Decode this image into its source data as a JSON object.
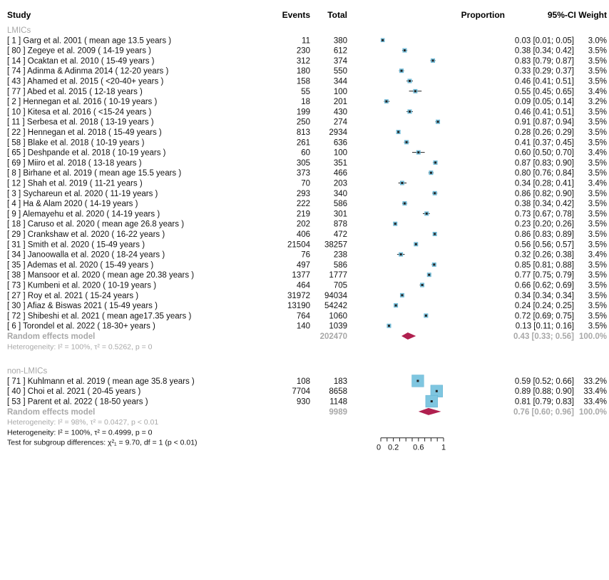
{
  "headers": {
    "study": "Study",
    "events": "Events",
    "total": "Total",
    "proportion": "Proportion",
    "ci_weight": "95%-CI Weight"
  },
  "colors": {
    "text": "#111111",
    "gray_text": "#a8a8a8",
    "square": "#7fc6e0",
    "square_edge": "#5aaed0",
    "diamond": "#b0204f",
    "ci_line": "#222222"
  },
  "chart_data": {
    "type": "forest",
    "xlim": [
      0,
      1
    ],
    "ticks": [
      "0",
      "0.2",
      "0.6",
      "1"
    ],
    "tick_values": [
      0,
      0.2,
      0.6,
      1
    ],
    "minor_ticks": [
      0,
      0.1,
      0.2,
      0.3,
      0.4,
      0.5,
      0.6,
      0.7,
      0.8,
      0.9,
      1
    ],
    "groups": [
      {
        "label": "LMICs",
        "studies": [
          {
            "study": "[ 1 ] Garg et al. 2001 ( mean age 13.5 years )",
            "events": "11",
            "total": "380",
            "est": 0.03,
            "lo": 0.01,
            "hi": 0.05,
            "ci_text": "0.03 [0.01; 0.05]",
            "weight": "3.0%",
            "w": 3.0
          },
          {
            "study": "[ 80 ] Zegeye et al. 2009 ( 14-19 years )",
            "events": "230",
            "total": "612",
            "est": 0.38,
            "lo": 0.34,
            "hi": 0.42,
            "ci_text": "0.38 [0.34; 0.42]",
            "weight": "3.5%",
            "w": 3.5
          },
          {
            "study": "[ 14 ] Ocaktan et al. 2010 ( 15-49 years )",
            "events": "312",
            "total": "374",
            "est": 0.83,
            "lo": 0.79,
            "hi": 0.87,
            "ci_text": "0.83 [0.79; 0.87]",
            "weight": "3.5%",
            "w": 3.5
          },
          {
            "study": "[ 74 ] Adinma & Adinma 2014 ( 12-20 years )",
            "events": "180",
            "total": "550",
            "est": 0.33,
            "lo": 0.29,
            "hi": 0.37,
            "ci_text": "0.33 [0.29; 0.37]",
            "weight": "3.5%",
            "w": 3.5
          },
          {
            "study": "[ 43 ] Ahamed et al. 2015 ( <20-40+ years )",
            "events": "158",
            "total": "344",
            "est": 0.46,
            "lo": 0.41,
            "hi": 0.51,
            "ci_text": "0.46 [0.41; 0.51]",
            "weight": "3.5%",
            "w": 3.5
          },
          {
            "study": "[ 77 ] Abed et al. 2015 ( 12-18 years )",
            "events": "55",
            "total": "100",
            "est": 0.55,
            "lo": 0.45,
            "hi": 0.65,
            "ci_text": "0.55 [0.45; 0.65]",
            "weight": "3.4%",
            "w": 3.4
          },
          {
            "study": "[ 2 ] Hennegan et al. 2016 ( 10-19 years )",
            "events": "18",
            "total": "201",
            "est": 0.09,
            "lo": 0.05,
            "hi": 0.14,
            "ci_text": "0.09 [0.05; 0.14]",
            "weight": "3.2%",
            "w": 3.2
          },
          {
            "study": "[ 10 ] Kitesa et al. 2016 ( <15-24 years )",
            "events": "199",
            "total": "430",
            "est": 0.46,
            "lo": 0.41,
            "hi": 0.51,
            "ci_text": "0.46 [0.41; 0.51]",
            "weight": "3.5%",
            "w": 3.5
          },
          {
            "study": "[ 11 ] Serbesa et al. 2018 ( 13-19 years )",
            "events": "250",
            "total": "274",
            "est": 0.91,
            "lo": 0.87,
            "hi": 0.94,
            "ci_text": "0.91 [0.87; 0.94]",
            "weight": "3.5%",
            "w": 3.5
          },
          {
            "study": "[ 22 ] Hennegan et al. 2018 ( 15-49 years )",
            "events": "813",
            "total": "2934",
            "est": 0.28,
            "lo": 0.26,
            "hi": 0.29,
            "ci_text": "0.28 [0.26; 0.29]",
            "weight": "3.5%",
            "w": 3.5
          },
          {
            "study": "[ 58 ] Blake et al. 2018 ( 10-19 years )",
            "events": "261",
            "total": "636",
            "est": 0.41,
            "lo": 0.37,
            "hi": 0.45,
            "ci_text": "0.41 [0.37; 0.45]",
            "weight": "3.5%",
            "w": 3.5
          },
          {
            "study": "[ 65 ] Deshpande et al. 2018 ( 10-19 years )",
            "events": "60",
            "total": "100",
            "est": 0.6,
            "lo": 0.5,
            "hi": 0.7,
            "ci_text": "0.60 [0.50; 0.70]",
            "weight": "3.4%",
            "w": 3.4
          },
          {
            "study": "[ 69 ] Miiro et al. 2018 ( 13-18 years )",
            "events": "305",
            "total": "351",
            "est": 0.87,
            "lo": 0.83,
            "hi": 0.9,
            "ci_text": "0.87 [0.83; 0.90]",
            "weight": "3.5%",
            "w": 3.5
          },
          {
            "study": "[ 8 ] Birhane et al. 2019 ( mean age 15.5 years )",
            "events": "373",
            "total": "466",
            "est": 0.8,
            "lo": 0.76,
            "hi": 0.84,
            "ci_text": "0.80 [0.76; 0.84]",
            "weight": "3.5%",
            "w": 3.5
          },
          {
            "study": "[ 12 ] Shah et al. 2019 ( 11-21 years )",
            "events": "70",
            "total": "203",
            "est": 0.34,
            "lo": 0.28,
            "hi": 0.41,
            "ci_text": "0.34 [0.28; 0.41]",
            "weight": "3.4%",
            "w": 3.4
          },
          {
            "study": "[ 3 ] Sychareun et al. 2020 ( 11-19 years )",
            "events": "293",
            "total": "340",
            "est": 0.86,
            "lo": 0.82,
            "hi": 0.9,
            "ci_text": "0.86 [0.82; 0.90]",
            "weight": "3.5%",
            "w": 3.5
          },
          {
            "study": "[ 4 ] Ha & Alam 2020 ( 14-19 years )",
            "events": "222",
            "total": "586",
            "est": 0.38,
            "lo": 0.34,
            "hi": 0.42,
            "ci_text": "0.38 [0.34; 0.42]",
            "weight": "3.5%",
            "w": 3.5
          },
          {
            "study": "[ 9 ] Alemayehu et al. 2020 ( 14-19 years )",
            "events": "219",
            "total": "301",
            "est": 0.73,
            "lo": 0.67,
            "hi": 0.78,
            "ci_text": "0.73 [0.67; 0.78]",
            "weight": "3.5%",
            "w": 3.5
          },
          {
            "study": "[ 18 ] Caruso et al. 2020 ( mean age 26.8 years )",
            "events": "202",
            "total": "878",
            "est": 0.23,
            "lo": 0.2,
            "hi": 0.26,
            "ci_text": "0.23 [0.20; 0.26]",
            "weight": "3.5%",
            "w": 3.5
          },
          {
            "study": "[ 29 ] Crankshaw et al. 2020 ( 16-22 years )",
            "events": "406",
            "total": "472",
            "est": 0.86,
            "lo": 0.83,
            "hi": 0.89,
            "ci_text": "0.86 [0.83; 0.89]",
            "weight": "3.5%",
            "w": 3.5
          },
          {
            "study": "[ 31 ] Smith et al. 2020 ( 15-49 years )",
            "events": "21504",
            "total": "38257",
            "est": 0.56,
            "lo": 0.56,
            "hi": 0.57,
            "ci_text": "0.56 [0.56; 0.57]",
            "weight": "3.5%",
            "w": 3.5
          },
          {
            "study": "[ 34 ] Janoowalla et al. 2020 ( 18-24 years )",
            "events": "76",
            "total": "238",
            "est": 0.32,
            "lo": 0.26,
            "hi": 0.38,
            "ci_text": "0.32 [0.26; 0.38]",
            "weight": "3.4%",
            "w": 3.4
          },
          {
            "study": "[ 35 ] Ademas et al. 2020 ( 15-49 years )",
            "events": "497",
            "total": "586",
            "est": 0.85,
            "lo": 0.81,
            "hi": 0.88,
            "ci_text": "0.85 [0.81; 0.88]",
            "weight": "3.5%",
            "w": 3.5
          },
          {
            "study": "[ 38 ] Mansoor et al. 2020 ( mean age 20.38 years )",
            "events": "1377",
            "total": "1777",
            "est": 0.77,
            "lo": 0.75,
            "hi": 0.79,
            "ci_text": "0.77 [0.75; 0.79]",
            "weight": "3.5%",
            "w": 3.5
          },
          {
            "study": "[ 73 ] Kumbeni et al. 2020 ( 10-19 years )",
            "events": "464",
            "total": "705",
            "est": 0.66,
            "lo": 0.62,
            "hi": 0.69,
            "ci_text": "0.66 [0.62; 0.69]",
            "weight": "3.5%",
            "w": 3.5
          },
          {
            "study": "[ 27 ] Roy et al. 2021 ( 15-24 years )",
            "events": "31972",
            "total": "94034",
            "est": 0.34,
            "lo": 0.34,
            "hi": 0.34,
            "ci_text": "0.34 [0.34; 0.34]",
            "weight": "3.5%",
            "w": 3.5
          },
          {
            "study": "[ 30 ] Afiaz & Biswas 2021 ( 15-49 years )",
            "events": "13190",
            "total": "54242",
            "est": 0.24,
            "lo": 0.24,
            "hi": 0.25,
            "ci_text": "0.24 [0.24; 0.25]",
            "weight": "3.5%",
            "w": 3.5
          },
          {
            "study": "[ 72 ] Shibeshi et al. 2021 ( mean age17.35 years )",
            "events": "764",
            "total": "1060",
            "est": 0.72,
            "lo": 0.69,
            "hi": 0.75,
            "ci_text": "0.72 [0.69; 0.75]",
            "weight": "3.5%",
            "w": 3.5
          },
          {
            "study": "[ 6 ] Torondel et al. 2022 ( 18-30+ years )",
            "events": "140",
            "total": "1039",
            "est": 0.13,
            "lo": 0.11,
            "hi": 0.16,
            "ci_text": "0.13 [0.11; 0.16]",
            "weight": "3.5%",
            "w": 3.5
          }
        ],
        "summary": {
          "label": "Random effects model",
          "total": "202470",
          "est": 0.43,
          "lo": 0.33,
          "hi": 0.56,
          "ci_text": "0.43 [0.33; 0.56]",
          "weight": "100.0%"
        },
        "heterogeneity": "Heterogeneity: I² = 100%, τ² = 0.5262, p = 0"
      },
      {
        "label": "non-LMICs",
        "studies": [
          {
            "study": "[ 71 ] Kuhlmann et al. 2019 ( mean age 35.8 years )",
            "events": "108",
            "total": "183",
            "est": 0.59,
            "lo": 0.52,
            "hi": 0.66,
            "ci_text": "0.59 [0.52; 0.66]",
            "weight": "33.2%",
            "w": 33.2
          },
          {
            "study": "[ 40 ] Choi et al. 2021 ( 20-45 years )",
            "events": "7704",
            "total": "8658",
            "est": 0.89,
            "lo": 0.88,
            "hi": 0.9,
            "ci_text": "0.89 [0.88; 0.90]",
            "weight": "33.4%",
            "w": 33.4
          },
          {
            "study": "[ 53 ] Parent et al. 2022 ( 18-50 years )",
            "events": "930",
            "total": "1148",
            "est": 0.81,
            "lo": 0.79,
            "hi": 0.83,
            "ci_text": "0.81 [0.79; 0.83]",
            "weight": "33.4%",
            "w": 33.4
          }
        ],
        "summary": {
          "label": "Random effects model",
          "total": "9989",
          "est": 0.76,
          "lo": 0.6,
          "hi": 0.96,
          "ci_text": "0.76 [0.60; 0.96]",
          "weight": "100.0%"
        },
        "heterogeneity": "Heterogeneity: I² = 98%, τ² = 0.0427, p < 0.01"
      }
    ],
    "overall_heterogeneity": "Heterogeneity: I² = 100%, τ² = 0.4999, p = 0",
    "subgroup_test": "Test for subgroup differences: χ²₁ = 9.70, df = 1 (p < 0.01)"
  }
}
